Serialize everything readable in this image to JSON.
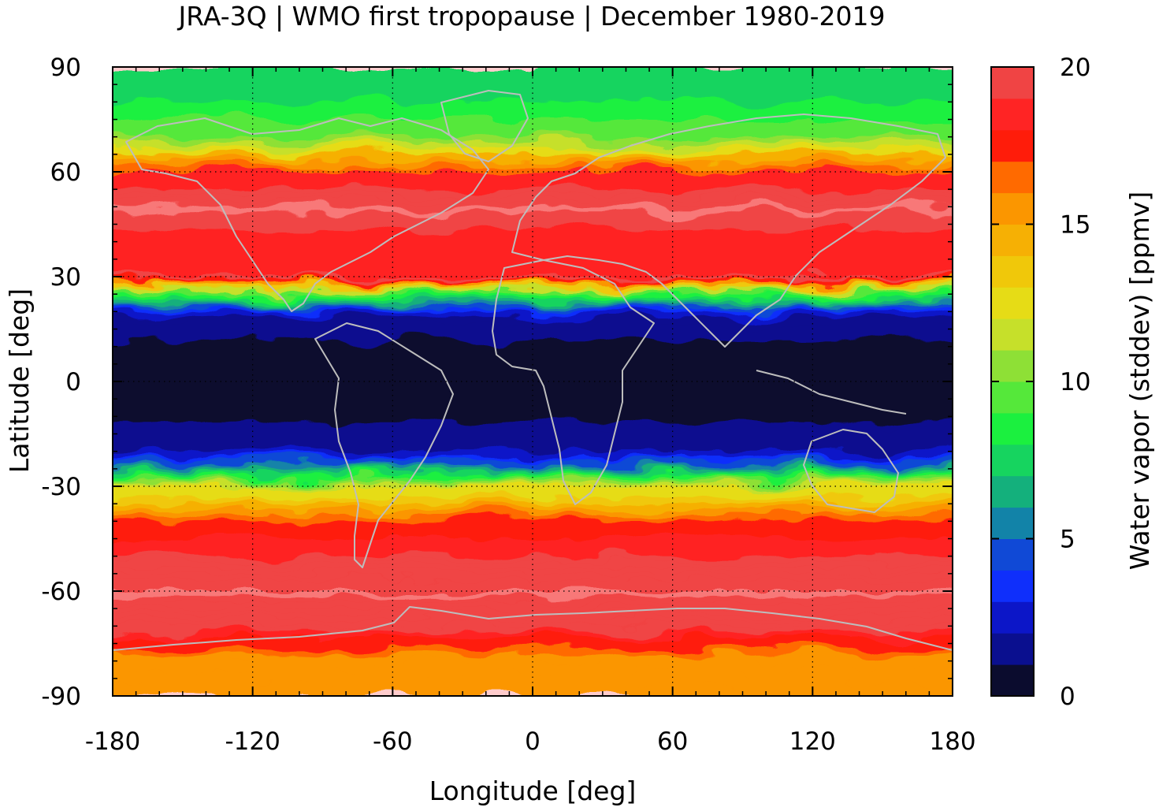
{
  "chart_data": {
    "type": "heatmap",
    "title": "JRA-3Q | WMO first tropopause | December 1980-2019",
    "xlabel": "Longitude [deg]",
    "ylabel": "Latitude [deg]",
    "colorbar_label": "Water vapor (stddev) [ppmv]",
    "xlim": [
      -180,
      180
    ],
    "ylim": [
      -90,
      90
    ],
    "xticks": [
      -180,
      -120,
      -60,
      0,
      60,
      120,
      180
    ],
    "yticks": [
      90,
      60,
      30,
      0,
      -30,
      -60,
      -90
    ],
    "grid": true,
    "colorbar": {
      "range": [
        0,
        20
      ],
      "ticks": [
        0,
        5,
        10,
        15,
        20
      ],
      "levels": [
        0,
        1,
        2,
        3,
        4,
        5,
        6,
        7,
        8,
        9,
        10,
        11,
        12,
        13,
        14,
        15,
        16,
        17,
        18,
        19,
        20
      ],
      "colors": [
        "#0b0c2e",
        "#0a0f8f",
        "#0c16c8",
        "#0f2ffb",
        "#1049d6",
        "#1283a8",
        "#14b07c",
        "#16d45f",
        "#1bf03f",
        "#55e83a",
        "#8ee036",
        "#c6e02a",
        "#e6dc16",
        "#f0c80a",
        "#f6b004",
        "#fb9600",
        "#ff6a00",
        "#ff1c0a",
        "#ff2424",
        "#f04444",
        "#f87878",
        "#ffcccc"
      ]
    },
    "zonal_mean_profile": {
      "lat": [
        90,
        80,
        70,
        60,
        50,
        40,
        30,
        25,
        20,
        10,
        0,
        -10,
        -20,
        -25,
        -30,
        -40,
        -50,
        -60,
        -70,
        -80,
        -90
      ],
      "value": [
        7,
        8,
        10,
        18,
        20,
        18,
        19,
        8,
        2,
        0.5,
        0.3,
        0.8,
        2,
        6,
        12,
        17,
        19,
        20,
        19,
        15,
        16
      ]
    }
  },
  "colors": {
    "coastline": "#bdbdbd",
    "frame": "#000000"
  }
}
